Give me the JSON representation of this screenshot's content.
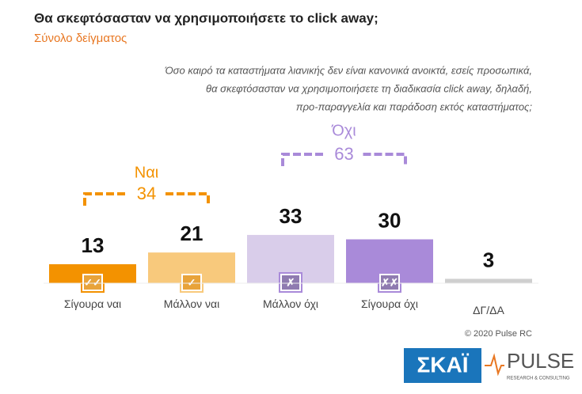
{
  "chart_data": {
    "type": "bar",
    "title": "Θα σκεφτόσασταν να χρησιμοποιήσετε το click away;",
    "subtitle": "Σύνολο δείγματος",
    "question": [
      "Όσο καιρό τα καταστήματα λιανικής δεν είναι κανονικά ανοικτά, εσείς προσωπικά,",
      "θα σκεφτόσασταν να χρησιμοποιήσετε τη διαδικασία click away, δηλαδή,",
      "προ-παραγγελία και παράδοση εκτός καταστήματος;"
    ],
    "categories": [
      "Σίγουρα ναι",
      "Μάλλον ναι",
      "Μάλλον όχι",
      "Σίγουρα όχι",
      "ΔΓ/ΔΑ"
    ],
    "values": [
      13,
      21,
      33,
      30,
      3
    ],
    "colors": [
      "#f39200",
      "#f8c97c",
      "#d9cdea",
      "#a98ad9",
      "#cfcfcf"
    ],
    "icons": [
      "✓✓",
      "✓",
      "✗",
      "✗✗",
      null
    ],
    "groups": [
      {
        "name": "Ναι",
        "value": 34,
        "color": "#f39200"
      },
      {
        "name": "Όχι",
        "value": 63,
        "color": "#a98ad9"
      }
    ],
    "copyright": "© 2020 Pulse RC",
    "logos": [
      "ΣΚΑΪ",
      "PULSE",
      "RESEARCH & CONSULTING"
    ]
  }
}
